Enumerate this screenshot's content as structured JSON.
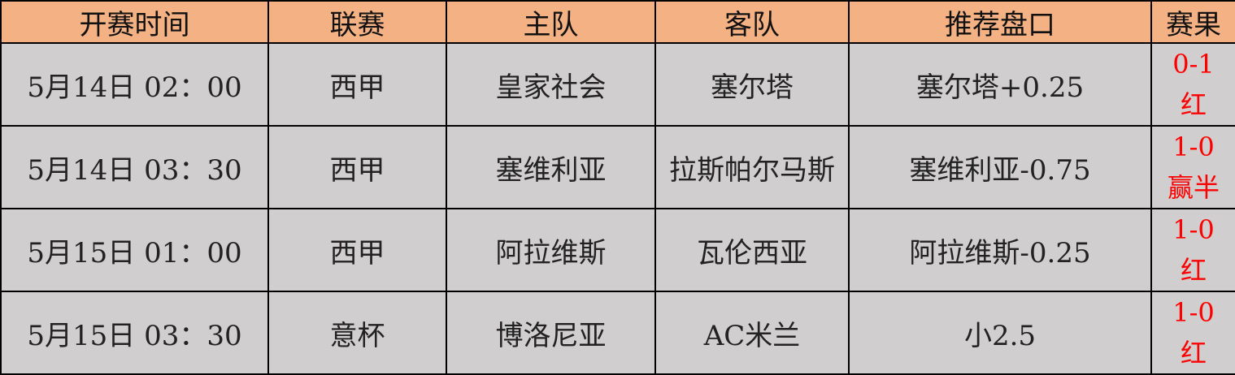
{
  "headers": [
    "开赛时间",
    "联赛",
    "主队",
    "客队",
    "推荐盘口",
    "赛果"
  ],
  "rows": [
    {
      "time": "5月14日 02：00",
      "league": "西甲",
      "home": "皇家社会",
      "away": "塞尔塔",
      "pick": "塞尔塔+0.25",
      "score": "0-1",
      "result": "红"
    },
    {
      "time": "5月14日 03：30",
      "league": "西甲",
      "home": "塞维利亚",
      "away": "拉斯帕尔马斯",
      "pick": "塞维利亚-0.75",
      "score": "1-0",
      "result": "赢半"
    },
    {
      "time": "5月15日 01：00",
      "league": "西甲",
      "home": "阿拉维斯",
      "away": "瓦伦西亚",
      "pick": "阿拉维斯-0.25",
      "score": "1-0",
      "result": "红"
    },
    {
      "time": "5月15日 03：30",
      "league": "意杯",
      "home": "博洛尼亚",
      "away": "AC米兰",
      "pick": "小2.5",
      "score": "1-0",
      "result": "红"
    }
  ],
  "colors": {
    "header_bg": "#F4B183",
    "cell_bg": "#D0CECE",
    "result_text": "#FF0000"
  }
}
